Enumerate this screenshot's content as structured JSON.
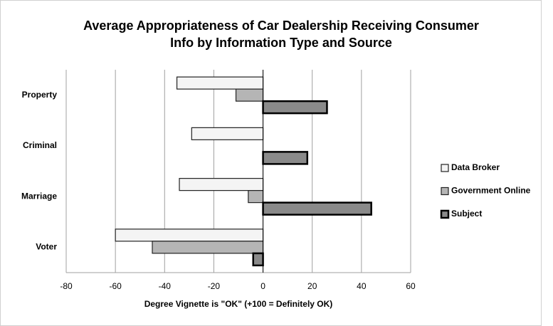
{
  "chart_data": {
    "type": "hbar",
    "title": [
      "Average Appropriateness of Car Dealership Receiving Consumer",
      "Info by Information Type and Source"
    ],
    "xlabel": "Degree Vignette is \"OK\" (+100 = Definitely OK)",
    "categories": [
      "Property",
      "Criminal",
      "Marriage",
      "Voter"
    ],
    "series": [
      {
        "name": "Data Broker",
        "color": "#f4f4f4",
        "values": [
          -35,
          -29,
          -34,
          -60
        ]
      },
      {
        "name": "Government Online",
        "color": "#b5b5b5",
        "values": [
          -11,
          0,
          -6,
          -45
        ]
      },
      {
        "name": "Subject",
        "color": "#8a8a8a",
        "values": [
          26,
          18,
          44,
          -4
        ]
      }
    ],
    "xlim": [
      -80,
      60
    ],
    "xticks": [
      -80,
      -60,
      -40,
      -20,
      0,
      20,
      40,
      60
    ],
    "grid": true,
    "legend": "right"
  }
}
